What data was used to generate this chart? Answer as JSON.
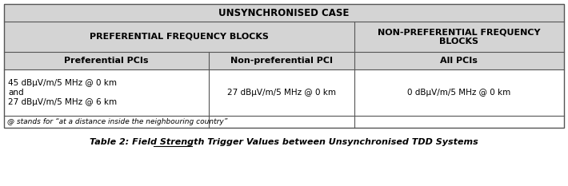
{
  "title": "UNSYNCHRONISED CASE",
  "col1_header1": "PREFERENTIAL FREQUENCY BLOCKS",
  "col3_header1": "NON-PREFERENTIAL FREQUENCY\nBLOCKS",
  "col1_header2": "Preferential PCIs",
  "col2_header2": "Non-preferential PCI",
  "col3_header2": "All PCIs",
  "col1_data": "45 dBμV/m/5 MHz @ 0 km\nand\n27 dBμV/m/5 MHz @ 6 km",
  "col2_data": "27 dBμV/m/5 MHz @ 0 km",
  "col3_data": "0 dBμV/m/5 MHz @ 0 km",
  "footnote": "@ stands for “at a distance inside the neighbouring country”",
  "caption_prefix": "Table 2: ",
  "caption_body": "Field Strength Trigger Values between Unsynchronised TDD Systems",
  "header_bg": "#d4d4d4",
  "data_bg": "#ffffff",
  "border_color": "#555555",
  "text_color": "#000000"
}
